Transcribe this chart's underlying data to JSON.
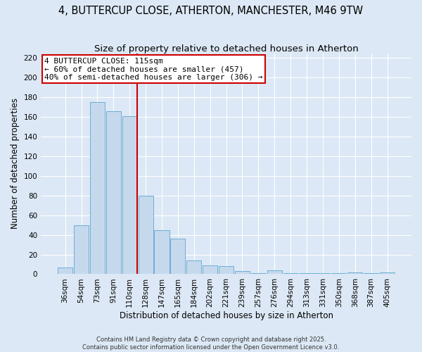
{
  "title": "4, BUTTERCUP CLOSE, ATHERTON, MANCHESTER, M46 9TW",
  "subtitle": "Size of property relative to detached houses in Atherton",
  "xlabel": "Distribution of detached houses by size in Atherton",
  "ylabel": "Number of detached properties",
  "categories": [
    "36sqm",
    "54sqm",
    "73sqm",
    "91sqm",
    "110sqm",
    "128sqm",
    "147sqm",
    "165sqm",
    "184sqm",
    "202sqm",
    "221sqm",
    "239sqm",
    "257sqm",
    "276sqm",
    "294sqm",
    "313sqm",
    "331sqm",
    "350sqm",
    "368sqm",
    "387sqm",
    "405sqm"
  ],
  "values": [
    7,
    50,
    175,
    166,
    161,
    80,
    45,
    36,
    14,
    9,
    8,
    3,
    1,
    4,
    1,
    1,
    1,
    1,
    2,
    1,
    2
  ],
  "bar_color": "#c6d9ec",
  "bar_edge_color": "#6aaed6",
  "vline_x_index": 4,
  "vline_color": "#cc0000",
  "annotation_line1": "4 BUTTERCUP CLOSE: 115sqm",
  "annotation_line2": "← 60% of detached houses are smaller (457)",
  "annotation_line3": "40% of semi-detached houses are larger (306) →",
  "annotation_box_facecolor": "#ffffff",
  "annotation_box_edgecolor": "#cc0000",
  "ylim": [
    0,
    225
  ],
  "yticks": [
    0,
    20,
    40,
    60,
    80,
    100,
    120,
    140,
    160,
    180,
    200,
    220
  ],
  "background_color": "#dce8f5",
  "grid_color": "#ffffff",
  "footer_line1": "Contains HM Land Registry data © Crown copyright and database right 2025.",
  "footer_line2": "Contains public sector information licensed under the Open Government Licence v3.0.",
  "title_fontsize": 10.5,
  "subtitle_fontsize": 9.5,
  "annotation_fontsize": 8,
  "axis_label_fontsize": 8.5,
  "tick_fontsize": 7.5
}
